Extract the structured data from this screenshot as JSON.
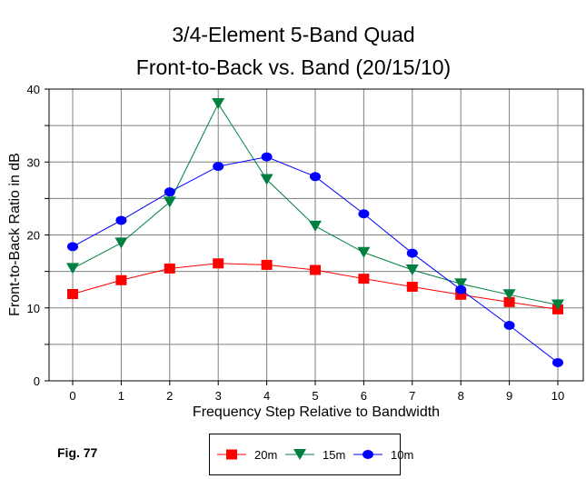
{
  "chart_data": {
    "type": "line",
    "title": "3/4-Element 5-Band Quad",
    "subtitle": "Front-to-Back vs. Band (20/15/10)",
    "xlabel": "Frequency Step Relative to Bandwidth",
    "ylabel": "Front-to-Back Ratio in dB",
    "x": [
      0,
      1,
      2,
      3,
      4,
      5,
      6,
      7,
      8,
      9,
      10
    ],
    "xlim": [
      -0.5,
      10.6
    ],
    "ylim": [
      0,
      40
    ],
    "yticks": [
      0,
      10,
      20,
      30,
      40
    ],
    "grid": true,
    "legend_position": "bottom",
    "series": [
      {
        "name": "20m",
        "color": "#ff0000",
        "marker": "square",
        "values": [
          11.9,
          13.8,
          15.4,
          16.1,
          15.9,
          15.2,
          14.0,
          12.9,
          11.8,
          10.8,
          9.8
        ]
      },
      {
        "name": "15m",
        "color": "#008040",
        "marker": "triangle-down",
        "values": [
          15.4,
          18.9,
          24.5,
          38.0,
          27.6,
          21.2,
          17.6,
          15.2,
          13.3,
          11.8,
          10.4
        ]
      },
      {
        "name": "10m",
        "color": "#0000ff",
        "marker": "circle",
        "values": [
          18.4,
          22.0,
          25.9,
          29.4,
          30.7,
          28.0,
          22.9,
          17.5,
          12.5,
          7.6,
          2.5
        ]
      }
    ]
  },
  "caption": "Fig. 77"
}
